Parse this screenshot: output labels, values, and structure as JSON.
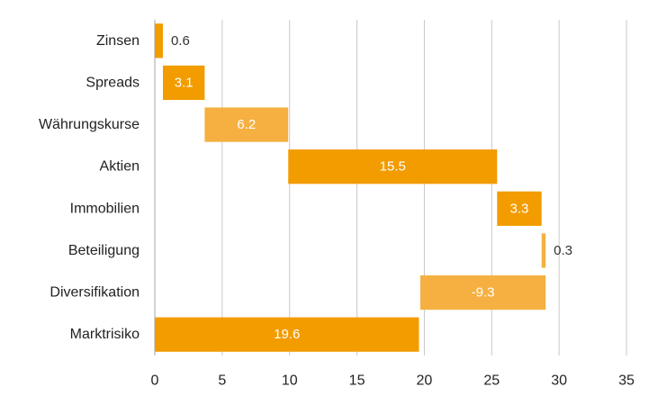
{
  "chart_data": {
    "type": "bar",
    "orientation": "horizontal",
    "style": "waterfall",
    "title": "",
    "xlabel": "",
    "ylabel": "",
    "xlim": [
      0,
      35
    ],
    "xticks": [
      0,
      5,
      10,
      15,
      20,
      25,
      30,
      35
    ],
    "grid": "vertical",
    "categories": [
      "Zinsen",
      "Spreads",
      "Währungskurse",
      "Aktien",
      "Immobilien",
      "Beteiligung",
      "Diversifikation",
      "Marktrisiko"
    ],
    "values": [
      0.6,
      3.1,
      6.2,
      15.5,
      3.3,
      0.3,
      -9.3,
      19.6
    ],
    "value_labels": [
      "0.6",
      "3.1",
      "6.2",
      "15.5",
      "3.3",
      "0.3",
      "-9.3",
      "19.6"
    ],
    "bar_start": [
      0,
      0.6,
      3.7,
      9.9,
      25.4,
      28.7,
      19.7,
      0
    ],
    "colors": {
      "dark": "#F29C00",
      "light": "#F5B041",
      "grid": "#C8C8C8",
      "axis": "#A6A6A6"
    },
    "bar_color_keys": [
      "dark",
      "dark",
      "light",
      "dark",
      "dark",
      "light",
      "light",
      "dark"
    ]
  }
}
